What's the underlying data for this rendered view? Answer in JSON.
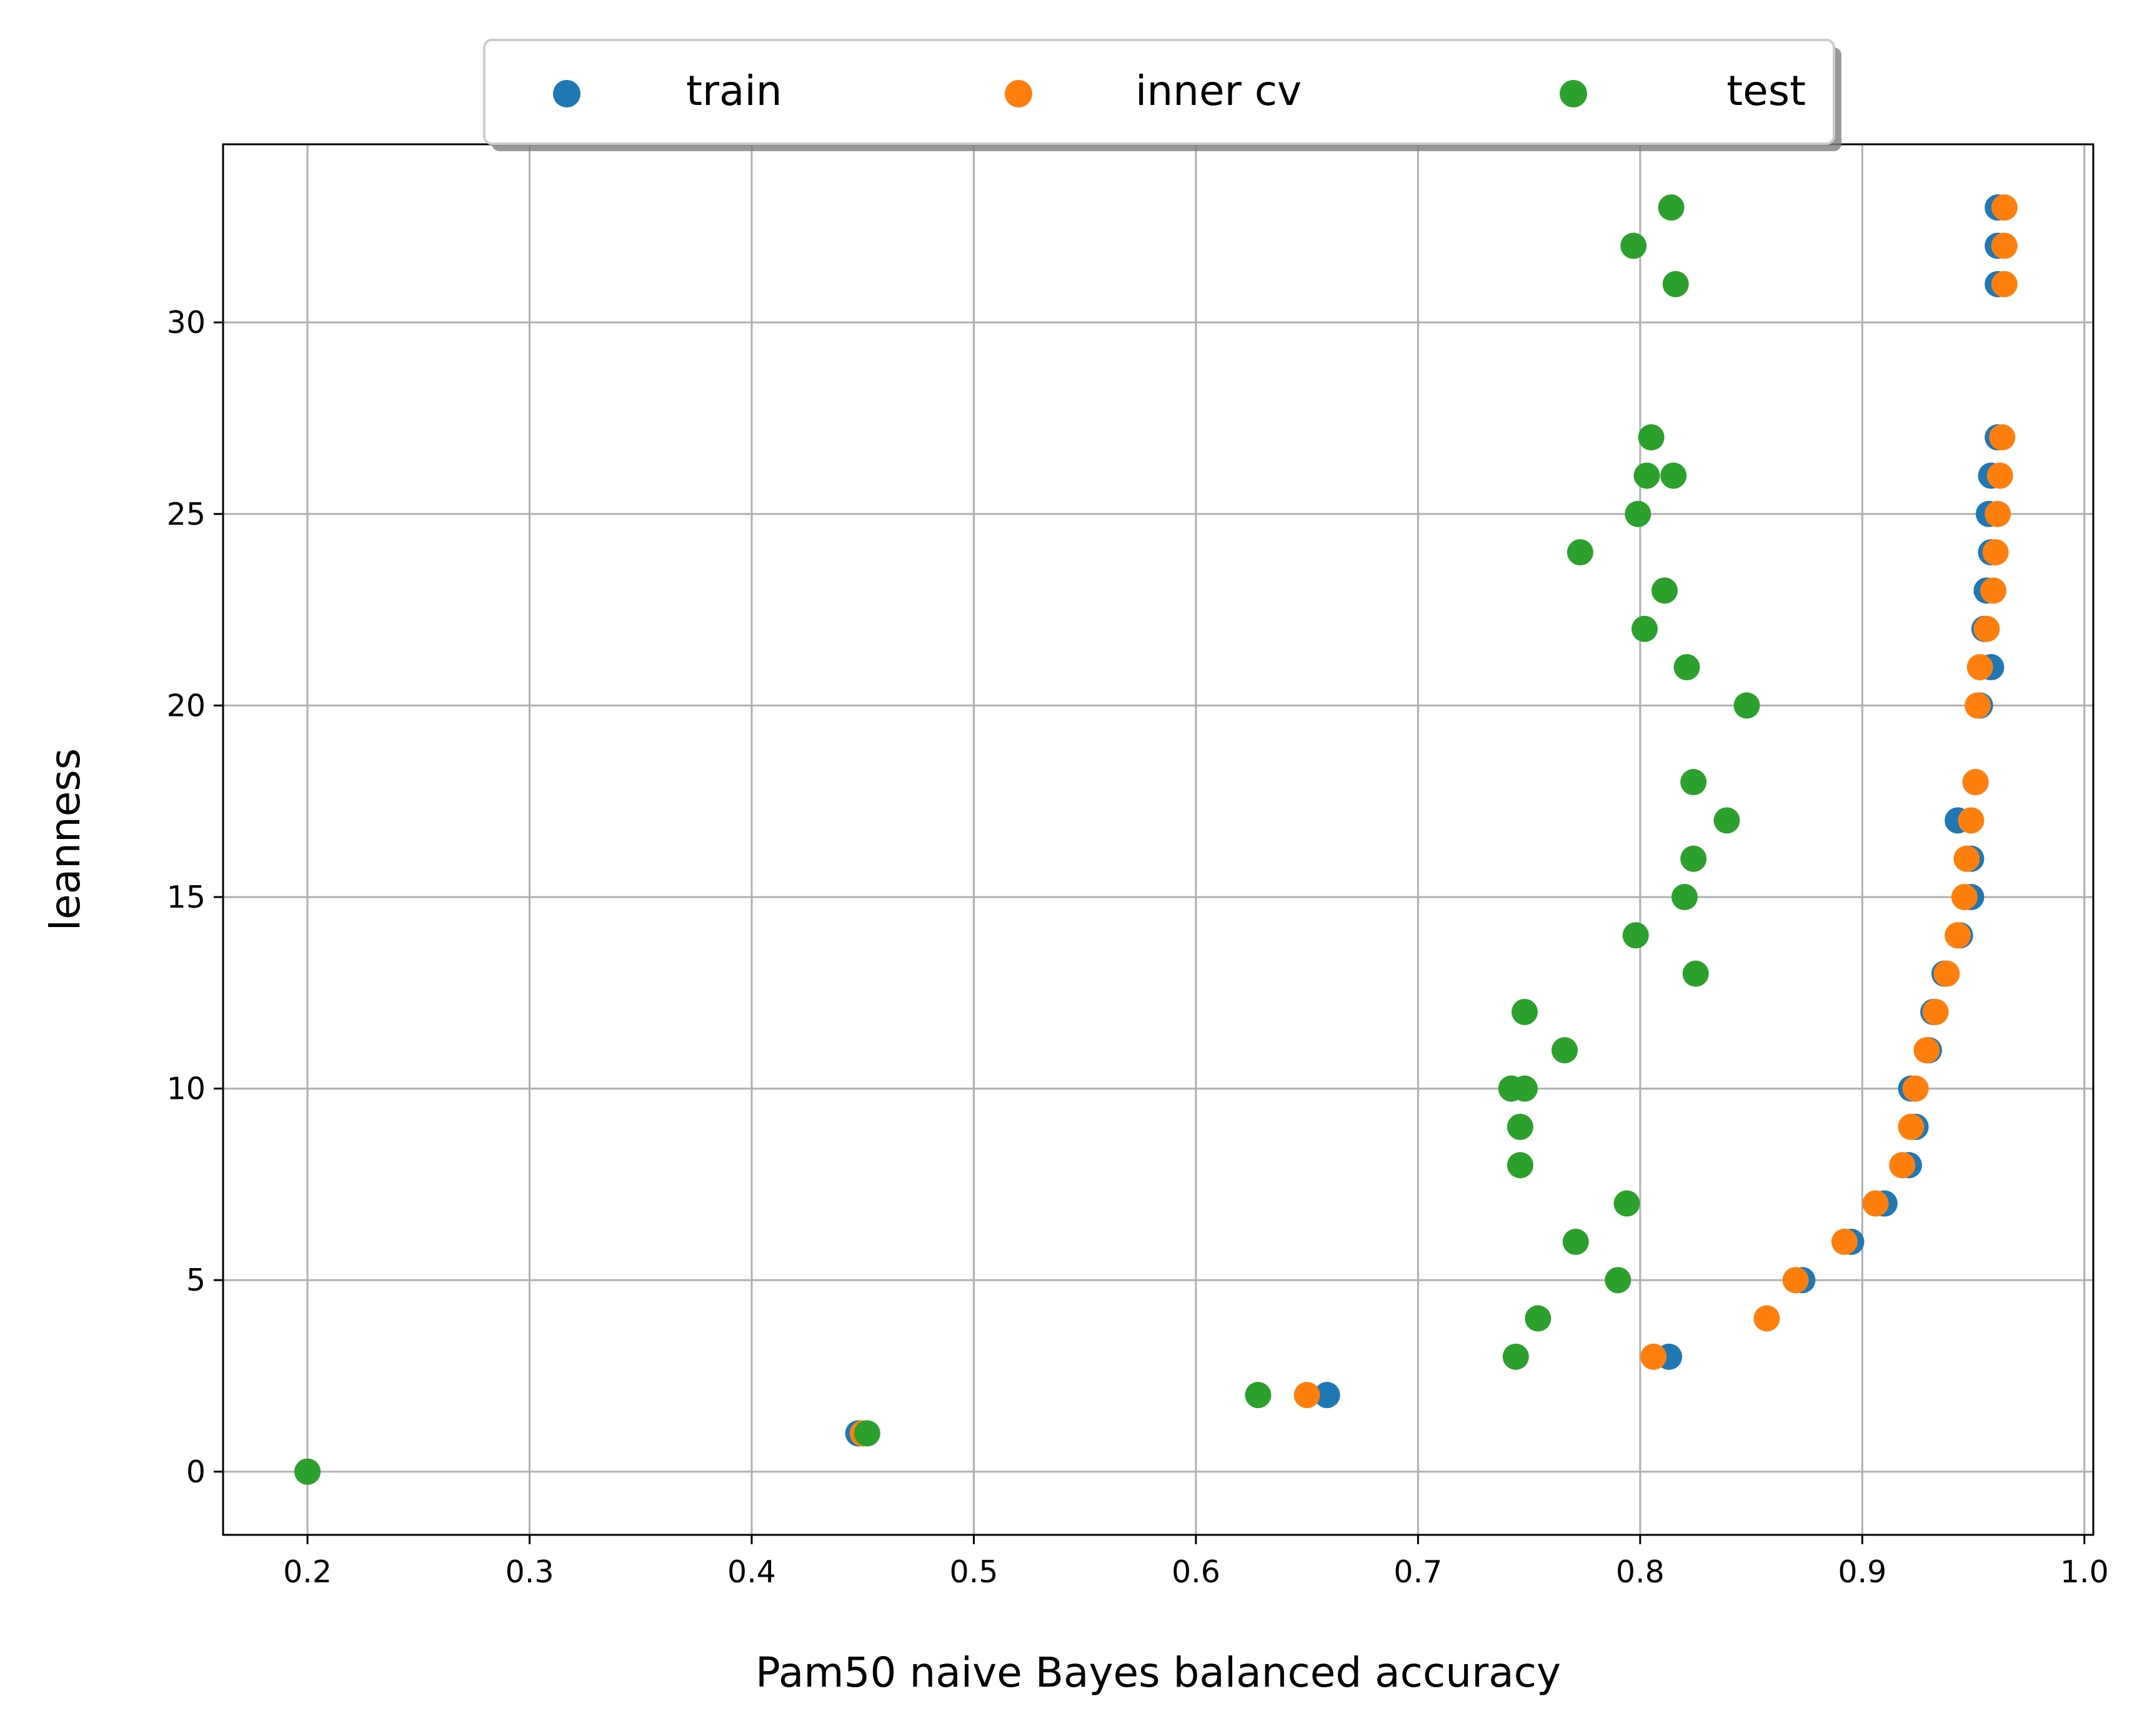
{
  "chart_data": {
    "type": "scatter",
    "title": "",
    "xlabel": "Pam50 naive Bayes balanced accuracy",
    "ylabel": "leanness",
    "xlim": [
      0.162,
      1.004
    ],
    "ylim": [
      -1.65,
      34.65
    ],
    "xticks": [
      0.2,
      0.3,
      0.4,
      0.5,
      0.6,
      0.7,
      0.8,
      0.9,
      1.0
    ],
    "xtick_labels": [
      "0.2",
      "0.3",
      "0.4",
      "0.5",
      "0.6",
      "0.7",
      "0.8",
      "0.9",
      "1.0"
    ],
    "yticks": [
      0,
      5,
      10,
      15,
      20,
      25,
      30
    ],
    "ytick_labels": [
      "0",
      "5",
      "10",
      "15",
      "20",
      "25",
      "30"
    ],
    "grid": true,
    "legend": {
      "placement": "top-center",
      "columns": 3,
      "shadow": true
    },
    "series": [
      {
        "name": "train",
        "color": "#1f77b4",
        "points": [
          {
            "x": 0.2,
            "y": 0
          },
          {
            "x": 0.448,
            "y": 1
          },
          {
            "x": 0.659,
            "y": 2
          },
          {
            "x": 0.813,
            "y": 3
          },
          {
            "x": 0.873,
            "y": 5
          },
          {
            "x": 0.895,
            "y": 6
          },
          {
            "x": 0.91,
            "y": 7
          },
          {
            "x": 0.921,
            "y": 8
          },
          {
            "x": 0.924,
            "y": 9
          },
          {
            "x": 0.922,
            "y": 10
          },
          {
            "x": 0.93,
            "y": 11
          },
          {
            "x": 0.932,
            "y": 12
          },
          {
            "x": 0.937,
            "y": 13
          },
          {
            "x": 0.944,
            "y": 14
          },
          {
            "x": 0.949,
            "y": 15
          },
          {
            "x": 0.949,
            "y": 16
          },
          {
            "x": 0.943,
            "y": 17
          },
          {
            "x": 0.951,
            "y": 18
          },
          {
            "x": 0.953,
            "y": 20
          },
          {
            "x": 0.958,
            "y": 21
          },
          {
            "x": 0.955,
            "y": 22
          },
          {
            "x": 0.956,
            "y": 23
          },
          {
            "x": 0.958,
            "y": 24
          },
          {
            "x": 0.957,
            "y": 25
          },
          {
            "x": 0.958,
            "y": 26
          },
          {
            "x": 0.961,
            "y": 27
          },
          {
            "x": 0.961,
            "y": 31
          },
          {
            "x": 0.961,
            "y": 32
          },
          {
            "x": 0.961,
            "y": 33
          }
        ]
      },
      {
        "name": "inner cv",
        "color": "#ff7f0e",
        "points": [
          {
            "x": 0.2,
            "y": 0
          },
          {
            "x": 0.45,
            "y": 1
          },
          {
            "x": 0.65,
            "y": 2
          },
          {
            "x": 0.806,
            "y": 3
          },
          {
            "x": 0.857,
            "y": 4
          },
          {
            "x": 0.87,
            "y": 5
          },
          {
            "x": 0.892,
            "y": 6
          },
          {
            "x": 0.906,
            "y": 7
          },
          {
            "x": 0.918,
            "y": 8
          },
          {
            "x": 0.922,
            "y": 9
          },
          {
            "x": 0.924,
            "y": 10
          },
          {
            "x": 0.929,
            "y": 11
          },
          {
            "x": 0.933,
            "y": 12
          },
          {
            "x": 0.938,
            "y": 13
          },
          {
            "x": 0.943,
            "y": 14
          },
          {
            "x": 0.946,
            "y": 15
          },
          {
            "x": 0.947,
            "y": 16
          },
          {
            "x": 0.949,
            "y": 17
          },
          {
            "x": 0.951,
            "y": 18
          },
          {
            "x": 0.952,
            "y": 20
          },
          {
            "x": 0.953,
            "y": 21
          },
          {
            "x": 0.956,
            "y": 22
          },
          {
            "x": 0.959,
            "y": 23
          },
          {
            "x": 0.96,
            "y": 24
          },
          {
            "x": 0.961,
            "y": 25
          },
          {
            "x": 0.962,
            "y": 26
          },
          {
            "x": 0.963,
            "y": 27
          },
          {
            "x": 0.964,
            "y": 31
          },
          {
            "x": 0.964,
            "y": 32
          },
          {
            "x": 0.964,
            "y": 33
          }
        ]
      },
      {
        "name": "test",
        "color": "#2ca02c",
        "points": [
          {
            "x": 0.2,
            "y": 0
          },
          {
            "x": 0.452,
            "y": 1
          },
          {
            "x": 0.628,
            "y": 2
          },
          {
            "x": 0.744,
            "y": 3
          },
          {
            "x": 0.754,
            "y": 4
          },
          {
            "x": 0.79,
            "y": 5
          },
          {
            "x": 0.771,
            "y": 6
          },
          {
            "x": 0.794,
            "y": 7
          },
          {
            "x": 0.746,
            "y": 8
          },
          {
            "x": 0.746,
            "y": 9
          },
          {
            "x": 0.742,
            "y": 10
          },
          {
            "x": 0.748,
            "y": 10
          },
          {
            "x": 0.766,
            "y": 11
          },
          {
            "x": 0.748,
            "y": 12
          },
          {
            "x": 0.825,
            "y": 13
          },
          {
            "x": 0.798,
            "y": 14
          },
          {
            "x": 0.82,
            "y": 15
          },
          {
            "x": 0.824,
            "y": 16
          },
          {
            "x": 0.839,
            "y": 17
          },
          {
            "x": 0.824,
            "y": 18
          },
          {
            "x": 0.848,
            "y": 20
          },
          {
            "x": 0.821,
            "y": 21
          },
          {
            "x": 0.802,
            "y": 22
          },
          {
            "x": 0.811,
            "y": 23
          },
          {
            "x": 0.773,
            "y": 24
          },
          {
            "x": 0.799,
            "y": 25
          },
          {
            "x": 0.803,
            "y": 26
          },
          {
            "x": 0.815,
            "y": 26
          },
          {
            "x": 0.805,
            "y": 27
          },
          {
            "x": 0.816,
            "y": 31
          },
          {
            "x": 0.797,
            "y": 32
          },
          {
            "x": 0.814,
            "y": 33
          }
        ]
      }
    ]
  }
}
